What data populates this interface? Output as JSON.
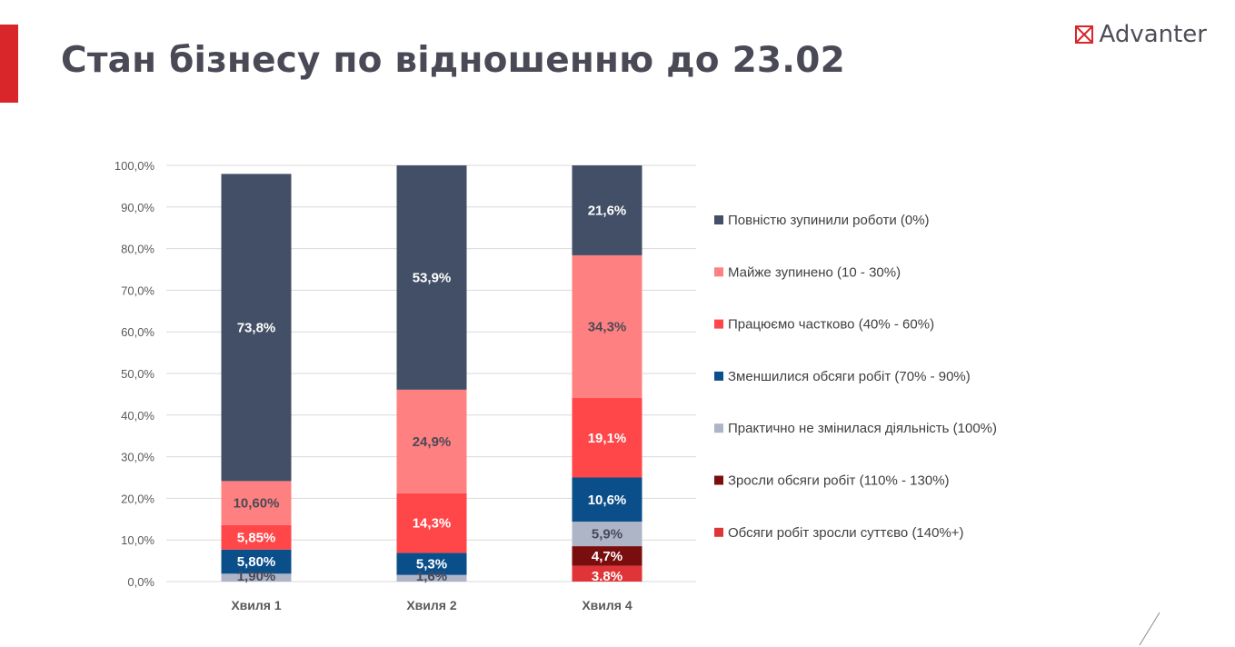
{
  "page": {
    "title": "Стан бізнесу по відношенню до 23.02",
    "brand": "Advanter"
  },
  "colors": {
    "accent": "#d9262b",
    "title": "#4a4a57",
    "grid": "#d9d9d9",
    "axis_text": "#595959"
  },
  "icons": {
    "brand_logo": "envelope-x-icon"
  },
  "chart_data": {
    "type": "bar",
    "stacked": true,
    "title": "",
    "xlabel": "",
    "ylabel": "",
    "ylim": [
      0,
      100
    ],
    "y_ticks": [
      "0,0%",
      "10,0%",
      "20,0%",
      "30,0%",
      "40,0%",
      "50,0%",
      "60,0%",
      "70,0%",
      "80,0%",
      "90,0%",
      "100,0%"
    ],
    "categories": [
      "Хвиля 1",
      "Хвиля 2",
      "Хвиля 4"
    ],
    "legend_position": "right",
    "series": [
      {
        "name": "Обсяги робіт зросли суттєво (140%+)",
        "color": "#e03538",
        "label_color": "#ffffff",
        "values": [
          0,
          0,
          3.8
        ],
        "labels": [
          "",
          "",
          "3.8%"
        ]
      },
      {
        "name": "Зросли обсяги робіт (110% - 130%)",
        "color": "#7a0d0d",
        "label_color": "#ffffff",
        "values": [
          0,
          0,
          4.7
        ],
        "labels": [
          "",
          "",
          "4,7%"
        ]
      },
      {
        "name": "Практично не змінилася діяльність (100%)",
        "color": "#adb5c7",
        "label_color": "#4a4a57",
        "values": [
          1.9,
          1.6,
          5.9
        ],
        "labels": [
          "1,90%",
          "1,6%",
          "5,9%"
        ]
      },
      {
        "name": "Зменшилися обсяги робіт (70% - 90%)",
        "color": "#0b4f8a",
        "label_color": "#ffffff",
        "values": [
          5.8,
          5.3,
          10.6
        ],
        "labels": [
          "5,80%",
          "5,3%",
          "10,6%"
        ]
      },
      {
        "name": "Працюємо частково (40% - 60%)",
        "color": "#ff4649",
        "label_color": "#ffffff",
        "values": [
          5.85,
          14.3,
          19.1
        ],
        "labels": [
          "5,85%",
          "14,3%",
          "19,1%"
        ]
      },
      {
        "name": "Майже зупинено (10 - 30%)",
        "color": "#ff8080",
        "label_color": "#4a4a57",
        "values": [
          10.6,
          24.9,
          34.3
        ],
        "labels": [
          "10,60%",
          "24,9%",
          "34,3%"
        ]
      },
      {
        "name": "Повністю зупинили роботи (0%)",
        "color": "#434f66",
        "label_color": "#ffffff",
        "values": [
          73.8,
          53.9,
          21.6
        ],
        "labels": [
          "73,8%",
          "53,9%",
          "21,6%"
        ]
      }
    ]
  }
}
